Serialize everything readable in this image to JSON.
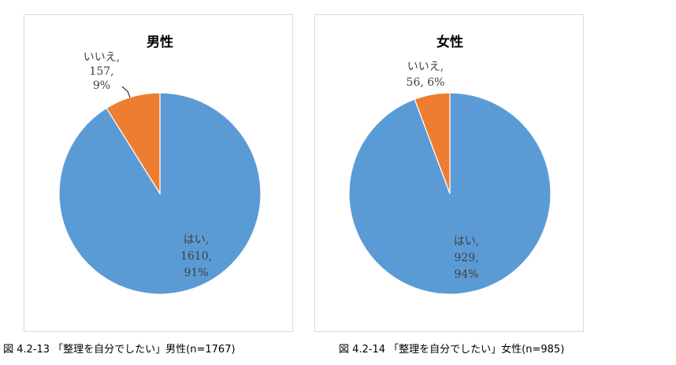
{
  "chart_data": [
    {
      "type": "pie",
      "title": "男性",
      "start_angle_deg": 0,
      "direction": "clockwise",
      "slices": [
        {
          "label": "はい",
          "value": 1610,
          "percent": "91%",
          "color": "#5B9BD5"
        },
        {
          "label": "いいえ",
          "value": 157,
          "percent": "9%",
          "color": "#ED7D31"
        }
      ],
      "data_labels": [
        {
          "lines": [
            "はい,",
            "1610,",
            "91%"
          ]
        },
        {
          "lines": [
            "いいえ,",
            "157,",
            "9%"
          ],
          "leader_line": true
        }
      ]
    },
    {
      "type": "pie",
      "title": "女性",
      "start_angle_deg": 0,
      "direction": "clockwise",
      "slices": [
        {
          "label": "はい",
          "value": 929,
          "percent": "94%",
          "color": "#5B9BD5"
        },
        {
          "label": "いいえ",
          "value": 56,
          "percent": "6%",
          "color": "#ED7D31"
        }
      ],
      "data_labels": [
        {
          "lines": [
            "はい,",
            "929,",
            "94%"
          ]
        },
        {
          "lines": [
            "いいえ,",
            "56, 6%"
          ],
          "leader_line": false
        }
      ]
    }
  ],
  "captions": [
    "図  4.2-13 「整理を自分でしたい」男性(n=1767)",
    "図  4.2-14 「整理を自分でしたい」女性(n=985)"
  ]
}
